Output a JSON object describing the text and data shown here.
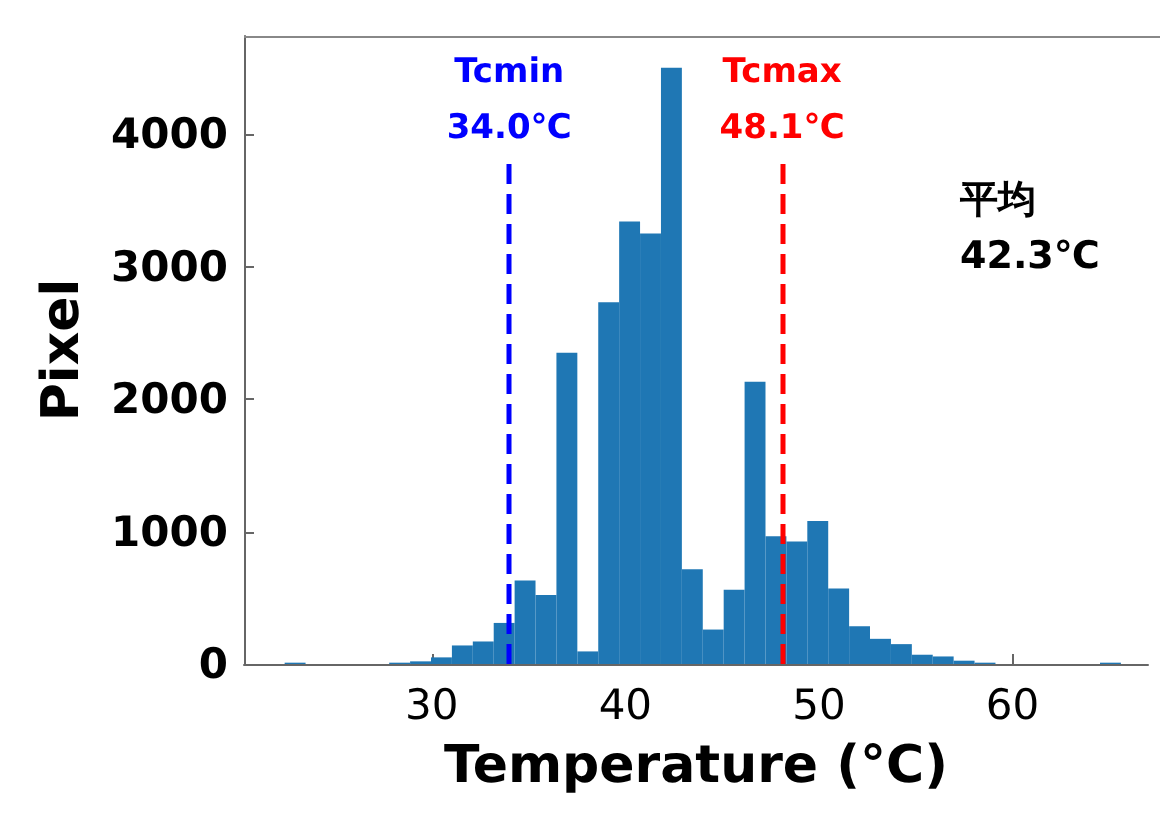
{
  "chart_data": {
    "type": "histogram",
    "xlabel": "Temperature (°C)",
    "ylabel": "Pixel",
    "bins": [
      22.4,
      23.48,
      24.56,
      25.64,
      26.72,
      27.8,
      28.88,
      29.96,
      31.04,
      32.12,
      33.2,
      34.28,
      35.36,
      36.44,
      37.52,
      38.6,
      39.68,
      40.76,
      41.84,
      42.92,
      44.0,
      45.08,
      46.16,
      47.24,
      48.32,
      49.4,
      50.48,
      51.56,
      52.64,
      53.72,
      54.8,
      55.88,
      56.96,
      58.04,
      59.12,
      60.2,
      61.28,
      62.36,
      63.44,
      64.52,
      65.6
    ],
    "values": [
      10,
      0,
      0,
      0,
      0,
      10,
      20,
      50,
      140,
      170,
      310,
      630,
      520,
      2350,
      95,
      2730,
      3340,
      3250,
      4500,
      715,
      260,
      560,
      2130,
      965,
      925,
      1080,
      570,
      285,
      190,
      150,
      70,
      57,
      25,
      10,
      0,
      0,
      0,
      0,
      0,
      10
    ],
    "color": "#1f77b4",
    "xlim": [
      20.3,
      67
    ],
    "xticks": [
      30,
      40,
      50,
      60
    ],
    "ylim": [
      0,
      4740
    ],
    "yticks": [
      0,
      1000,
      2000,
      3000,
      4000
    ],
    "grid": false,
    "ref_lines": [
      {
        "axis": "x",
        "value": 34.0,
        "label": "Tcmin\n34.0℃",
        "color": "#0000ff",
        "line_style": "dashed"
      },
      {
        "axis": "x",
        "value": 48.1,
        "label": "Tcmax\n48.1℃",
        "color": "#ff0000",
        "line_style": "dashed"
      }
    ],
    "annotations": [
      "平均\n42.3℃"
    ]
  }
}
